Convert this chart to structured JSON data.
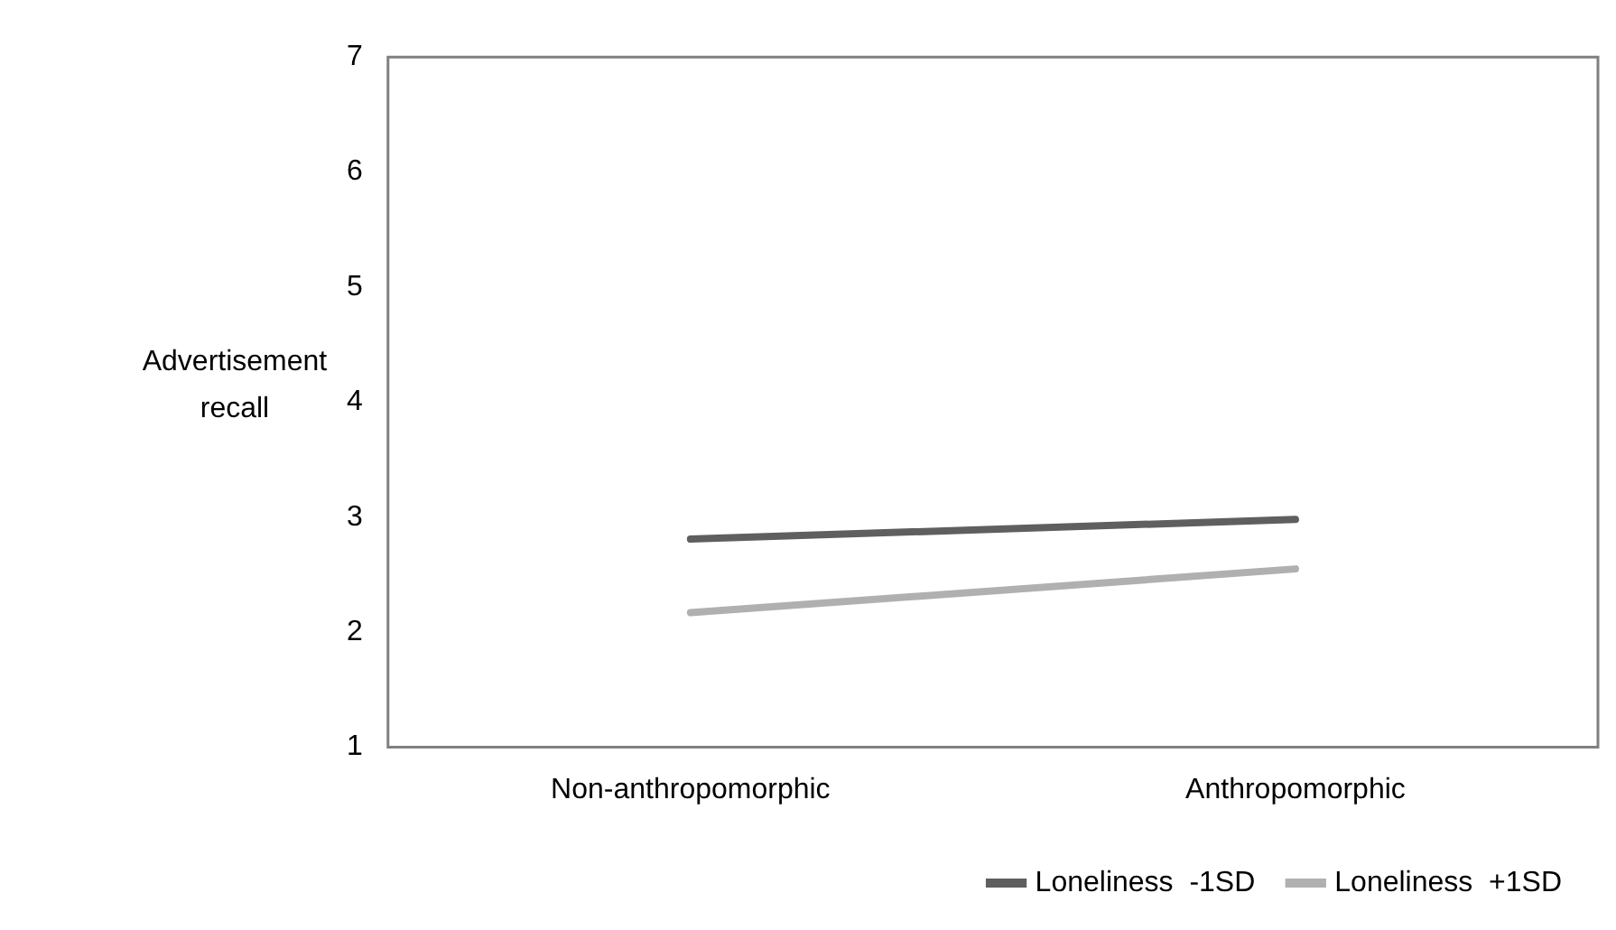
{
  "chart_data": {
    "type": "line",
    "ylabel": "Advertisement recall",
    "categories": [
      "Non-anthropomorphic",
      "Anthropomorphic"
    ],
    "series": [
      {
        "name": "Loneliness  -1SD",
        "color": "#5f5f5f",
        "values": [
          2.81,
          2.98
        ]
      },
      {
        "name": "Loneliness  +1SD",
        "color": "#b0b0b0",
        "values": [
          2.17,
          2.55
        ]
      }
    ],
    "ylim": [
      1,
      7
    ],
    "yticks": [
      1,
      2,
      3,
      4,
      5,
      6,
      7
    ],
    "grid": false,
    "legend": "bottom",
    "marker": "none",
    "line_style": "solid"
  }
}
